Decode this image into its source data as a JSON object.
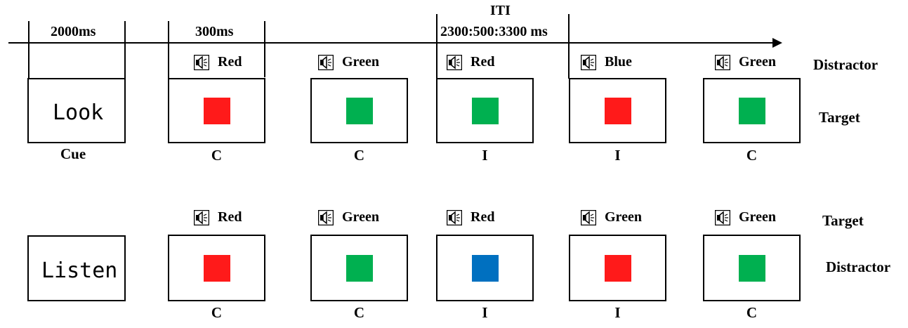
{
  "timeline": {
    "cue_duration": "2000ms",
    "stim_duration": "300ms",
    "iti_label": "ITI",
    "iti_duration": "2300:500:3300 ms"
  },
  "colors": {
    "red": "#ff1a1a",
    "green": "#00b050",
    "blue": "#0070c0"
  },
  "icons": {
    "sound": "speaker-icon"
  },
  "look_row": {
    "cue": "Look",
    "cue_label": "Cue",
    "sound_role": "Distractor",
    "visual_role": "Target",
    "trials": [
      {
        "sound": "Red",
        "square": "red",
        "condition": "C"
      },
      {
        "sound": "Green",
        "square": "green",
        "condition": "C"
      },
      {
        "sound": "Red",
        "square": "green",
        "condition": "I"
      },
      {
        "sound": "Blue",
        "square": "red",
        "condition": "I"
      },
      {
        "sound": "Green",
        "square": "green",
        "condition": "C"
      }
    ]
  },
  "listen_row": {
    "cue": "Listen",
    "sound_role": "Target",
    "visual_role": "Distractor",
    "trials": [
      {
        "sound": "Red",
        "square": "red",
        "condition": "C"
      },
      {
        "sound": "Green",
        "square": "green",
        "condition": "C"
      },
      {
        "sound": "Red",
        "square": "blue",
        "condition": "I"
      },
      {
        "sound": "Green",
        "square": "red",
        "condition": "I"
      },
      {
        "sound": "Green",
        "square": "green",
        "condition": "C"
      }
    ]
  }
}
